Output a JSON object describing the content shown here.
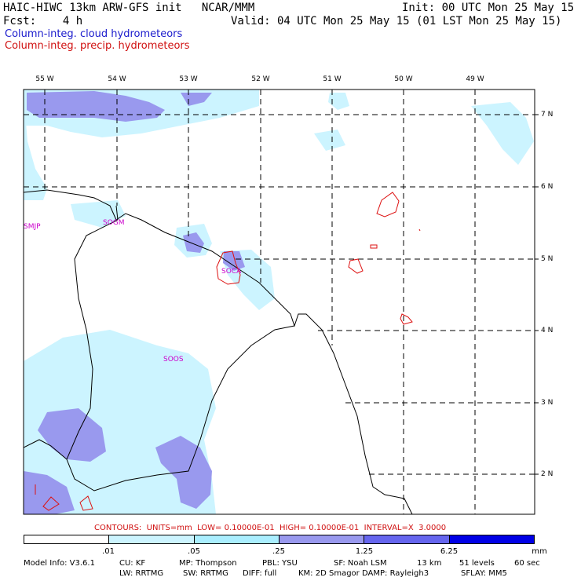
{
  "header": {
    "title_left": "HAIC-HIWC 13km ARW-GFS init   NCAR/MMM",
    "init": "Init: 00 UTC Mon 25 May 15",
    "fcst": "Fcst:    4 h",
    "valid": "Valid: 04 UTC Mon 25 May 15 (01 LST Mon 25 May 15)",
    "field1": "Column-integ. cloud hydrometeors",
    "field2": "Column-integ. precip. hydrometeors"
  },
  "map": {
    "lon_labels": [
      "55 W",
      "54 W",
      "53 W",
      "52 W",
      "51 W",
      "50 W",
      "49 W"
    ],
    "lat_labels": [
      "7 N",
      "6 N",
      "5 N",
      "4 N",
      "3 N",
      "2 N"
    ],
    "stations": [
      "SMJP",
      "SOGM",
      "SOCA",
      "SOOS"
    ],
    "colors": {
      "cloud_light": "#ccf4ff",
      "cloud_mid": "#9999ee",
      "precip_contour": "#dd1111",
      "station": "#cc00cc"
    }
  },
  "contours_text": "CONTOURS:  UNITS=mm  LOW= 0.10000E-01  HIGH= 0.10000E-01  INTERVAL=X  3.0000",
  "colorbar": {
    "labels": [
      ".01",
      ".05",
      ".25",
      "1.25",
      "6.25",
      "mm"
    ],
    "colors": [
      "#ffffff",
      "#ccf4ff",
      "#aaeeff",
      "#9999ee",
      "#6666ee",
      "#0000e6"
    ]
  },
  "footer": {
    "line1": [
      "Model Info: V3.6.1",
      "CU: KF",
      "MP: Thompson",
      "PBL: YSU",
      "SF: Noah LSM",
      "13 km",
      "51 levels",
      "60 sec"
    ],
    "line2": [
      "LW: RRTMG",
      "SW: RRTMG",
      "DIFF: full",
      "KM: 2D Smagor",
      "DAMP: Rayleigh3",
      "SFLAY: MM5"
    ]
  }
}
